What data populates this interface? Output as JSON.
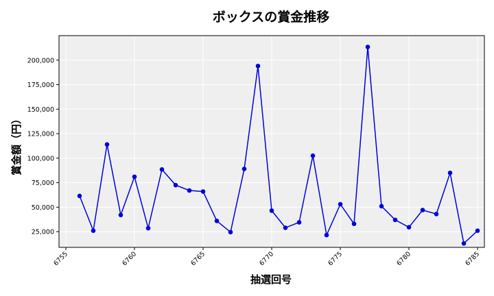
{
  "colors": {
    "plot_background": "#efefef",
    "grid": "#ffffff",
    "line": "#0000dd",
    "marker": "#0000dd",
    "axis": "#000000"
  },
  "chart_data": {
    "type": "line",
    "title": "ボックスの賞金推移",
    "xlabel": "抽選回号",
    "ylabel": "賞金額（円）",
    "xlim": [
      6754.5,
      6785.5
    ],
    "ylim": [
      9000,
      225000
    ],
    "x_ticks": [
      6755,
      6760,
      6765,
      6770,
      6775,
      6780,
      6785
    ],
    "x_tick_labels": [
      "6755",
      "6760",
      "6765",
      "6770",
      "6775",
      "6780",
      "6785"
    ],
    "y_ticks": [
      25000,
      50000,
      75000,
      100000,
      125000,
      150000,
      175000,
      200000
    ],
    "y_tick_labels": [
      "25,000",
      "50,000",
      "75,000",
      "100,000",
      "125,000",
      "150,000",
      "175,000",
      "200,000"
    ],
    "grid": true,
    "legend": "none",
    "series": [
      {
        "x": [
          6756,
          6757,
          6758,
          6759,
          6760,
          6761,
          6762,
          6763,
          6764,
          6765,
          6766,
          6767,
          6768,
          6769,
          6770,
          6771,
          6772,
          6773,
          6774,
          6775,
          6776,
          6777,
          6778,
          6779,
          6780,
          6781,
          6782,
          6783,
          6784,
          6785
        ],
        "values": [
          61500,
          26000,
          114000,
          42000,
          81000,
          28500,
          88500,
          72500,
          67000,
          66000,
          36000,
          24500,
          89000,
          194000,
          46500,
          29000,
          34500,
          102500,
          21500,
          53000,
          33000,
          213500,
          51000,
          37000,
          29500,
          47000,
          43000,
          85000,
          13000,
          26000
        ]
      }
    ]
  }
}
